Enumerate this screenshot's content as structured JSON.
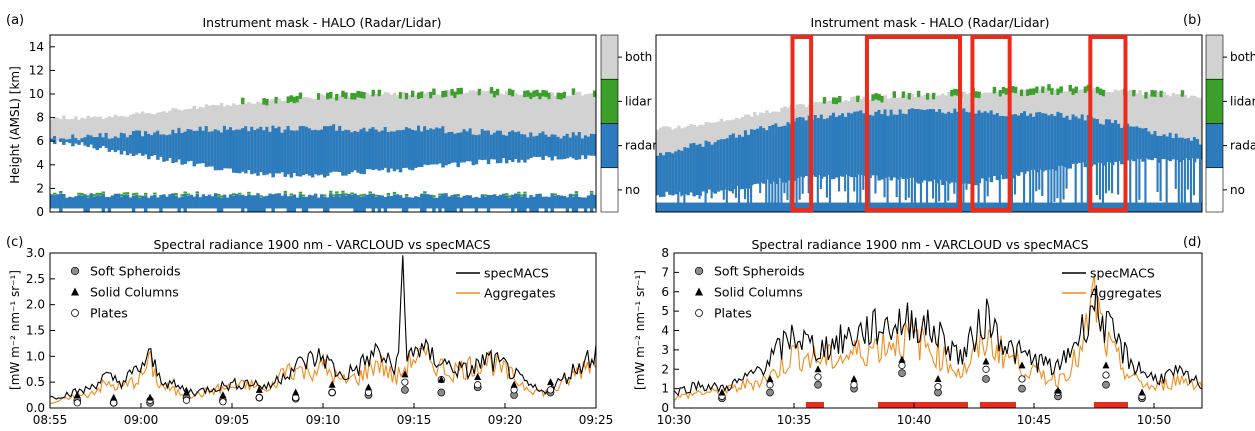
{
  "colors": {
    "no": "#ffffff",
    "radar": "#2b7bbd",
    "lidar": "#3aa02a",
    "both": "#d2d2d2",
    "specmacs": "#000000",
    "aggregates": "#f28c1d",
    "marker_gray": "#8c8c8c",
    "highlight": "#ee2a1b"
  },
  "chart_data": [
    {
      "type": "heatmap",
      "panel": "(a)",
      "title": "Instrument mask - HALO (Radar/Lidar)",
      "ylabel": "Height (AMSL) [km]",
      "ylim": [
        0,
        15
      ],
      "yticks": [
        0,
        2,
        4,
        6,
        8,
        10,
        12,
        14
      ],
      "xlim": [
        "08:55",
        "09:25"
      ],
      "colorbar_labels": [
        "both",
        "lidar",
        "radar",
        "no"
      ],
      "profile": {
        "radar_base_km": [
          6.0,
          5.6,
          5.0,
          4.4,
          3.9,
          3.4,
          3.1,
          3.1,
          3.4,
          3.6,
          3.9,
          4.2,
          4.4,
          4.6,
          4.7
        ],
        "cloud_top_km": [
          8.0,
          8.0,
          8.2,
          8.6,
          9.0,
          9.3,
          9.6,
          9.8,
          10.0,
          10.0,
          10.1,
          10.2,
          10.1,
          10.0,
          10.1
        ],
        "radar_top_km": [
          6.2,
          6.4,
          6.6,
          6.8,
          7.0,
          7.1,
          7.0,
          7.2,
          7.0,
          7.1,
          7.0,
          6.8,
          6.6,
          6.5,
          6.5
        ],
        "low_layer_top_km": 1.6
      }
    },
    {
      "type": "heatmap",
      "panel": "(b)",
      "title": "Instrument mask - HALO (Radar/Lidar)",
      "ylim": [
        0,
        15
      ],
      "xlim": [
        "10:30",
        "10:52"
      ],
      "colorbar_labels": [
        "both",
        "lidar",
        "radar",
        "no"
      ],
      "highlight_intervals": [
        [
          "10:35:30",
          "10:36:15"
        ],
        [
          "10:38:30",
          "10:42:15"
        ],
        [
          "10:42:45",
          "10:44:15"
        ],
        [
          "10:47:30",
          "10:48:55"
        ]
      ],
      "profile": {
        "radar_base_km": [
          1.5,
          1.5,
          2.0,
          2.6,
          3.0,
          3.0,
          2.8,
          2.6,
          2.4,
          3.0,
          3.6,
          4.0,
          4.2,
          4.4,
          4.4
        ],
        "cloud_top_km": [
          7.0,
          7.4,
          8.0,
          8.6,
          9.2,
          9.6,
          9.8,
          10.0,
          10.1,
          10.2,
          10.4,
          10.4,
          10.2,
          10.0,
          9.8
        ],
        "radar_top_km": [
          5.0,
          5.6,
          6.4,
          7.4,
          8.0,
          8.4,
          8.4,
          8.6,
          8.6,
          8.4,
          8.3,
          8.0,
          7.4,
          6.6,
          6.0
        ]
      }
    },
    {
      "type": "line",
      "panel": "(c)",
      "title": "Spectral radiance 1900 nm - VARCLOUD vs specMACS",
      "ylabel": "[mW m⁻² nm⁻¹ sr⁻¹]",
      "ylim": [
        0,
        3.0
      ],
      "yticks": [
        "0.0",
        "0.5",
        "1.0",
        "1.5",
        "2.0",
        "2.5",
        "3.0"
      ],
      "xlim": [
        "08:55",
        "09:25"
      ],
      "xticks": [
        "08:55",
        "09:00",
        "09:05",
        "09:10",
        "09:15",
        "09:20",
        "09:25"
      ],
      "legend_left": [
        "Soft Spheroids",
        "Solid Columns",
        "Plates"
      ],
      "legend_right": [
        "specMACS",
        "Aggregates"
      ],
      "series": [
        {
          "name": "specMACS",
          "minutes": [
            0,
            2,
            3,
            4,
            5,
            5.5,
            6,
            7,
            8,
            9,
            10,
            11,
            12,
            13,
            14,
            15,
            16,
            17,
            18,
            19,
            19.4,
            19.6,
            20,
            21,
            22,
            23,
            24,
            25,
            26,
            27,
            28,
            29,
            30
          ],
          "values": [
            0.2,
            0.35,
            0.6,
            0.5,
            0.8,
            1.0,
            0.6,
            0.4,
            0.3,
            0.4,
            0.45,
            0.5,
            0.4,
            0.7,
            0.9,
            1.0,
            0.6,
            0.8,
            1.1,
            0.7,
            2.55,
            0.9,
            1.2,
            1.0,
            0.8,
            0.7,
            0.95,
            0.8,
            0.5,
            0.3,
            0.5,
            0.8,
            1.1
          ]
        },
        {
          "name": "Aggregates",
          "minutes": [
            0,
            2,
            3,
            4,
            5,
            5.5,
            6,
            7,
            8,
            9,
            10,
            11,
            12,
            13,
            14,
            15,
            16,
            17,
            18,
            19,
            20,
            21,
            22,
            23,
            24,
            25,
            26,
            27,
            28,
            29,
            30
          ],
          "values": [
            0.1,
            0.25,
            0.45,
            0.4,
            0.6,
            0.9,
            0.45,
            0.3,
            0.25,
            0.35,
            0.4,
            0.45,
            0.3,
            0.8,
            0.7,
            0.8,
            0.5,
            0.6,
            0.9,
            0.55,
            1.0,
            0.9,
            0.7,
            0.8,
            0.95,
            0.7,
            0.45,
            0.3,
            0.4,
            0.7,
            1.0
          ]
        },
        {
          "name": "Soft Spheroids",
          "minutes": [
            1.5,
            3.5,
            5.5,
            7.5,
            9.5,
            11.5,
            13.5,
            15.5,
            17.5,
            19.5,
            21.5,
            23.5,
            25.5,
            27.5
          ],
          "values": [
            0.15,
            0.1,
            0.1,
            0.2,
            0.15,
            0.2,
            0.18,
            0.3,
            0.25,
            0.35,
            0.3,
            0.4,
            0.25,
            0.3
          ]
        },
        {
          "name": "Solid Columns",
          "minutes": [
            1.5,
            3.5,
            5.5,
            7.5,
            9.5,
            11.5,
            13.5,
            15.5,
            17.5,
            19.5,
            21.5,
            23.5,
            25.5,
            27.5
          ],
          "values": [
            0.25,
            0.2,
            0.2,
            0.3,
            0.25,
            0.35,
            0.3,
            0.45,
            0.4,
            0.65,
            0.55,
            0.6,
            0.45,
            0.5
          ]
        },
        {
          "name": "Plates",
          "minutes": [
            1.5,
            3.5,
            5.5,
            7.5,
            9.5,
            11.5,
            13.5,
            15.5,
            17.5,
            19.5,
            21.5,
            23.5,
            25.5,
            27.5
          ],
          "values": [
            0.1,
            0.1,
            0.15,
            0.15,
            0.12,
            0.2,
            0.2,
            0.3,
            0.3,
            0.5,
            0.55,
            0.45,
            0.35,
            0.35
          ]
        }
      ]
    },
    {
      "type": "line",
      "panel": "(d)",
      "title": "Spectral radiance 1900 nm - VARCLOUD vs specMACS",
      "ylabel": "[mW m⁻² nm⁻¹ sr⁻¹]",
      "ylim": [
        0,
        8
      ],
      "yticks": [
        "0",
        "1",
        "2",
        "3",
        "4",
        "5",
        "6",
        "7",
        "8"
      ],
      "xlim": [
        "10:30",
        "10:52"
      ],
      "xticks": [
        "10:30",
        "10:35",
        "10:40",
        "10:45",
        "10:50"
      ],
      "legend_left": [
        "Soft Spheroids",
        "Solid Columns",
        "Plates"
      ],
      "legend_right": [
        "specMACS",
        "Aggregates"
      ],
      "highlight_intervals": [
        [
          "10:35:30",
          "10:36:15"
        ],
        [
          "10:38:30",
          "10:42:15"
        ],
        [
          "10:42:45",
          "10:44:15"
        ],
        [
          "10:47:30",
          "10:48:55"
        ]
      ],
      "series": [
        {
          "name": "specMACS",
          "minutes": [
            0,
            1,
            2,
            3,
            4,
            5,
            6,
            7,
            8,
            9,
            10,
            11,
            12,
            13,
            14,
            15,
            16,
            17,
            17.5,
            18,
            19,
            20,
            21,
            22
          ],
          "values": [
            0.8,
            1.2,
            1.0,
            1.5,
            2.5,
            3.8,
            3.0,
            3.5,
            4.0,
            4.3,
            4.5,
            3.8,
            2.6,
            4.8,
            3.0,
            2.5,
            2.0,
            4.0,
            5.5,
            4.2,
            2.4,
            1.5,
            1.8,
            1.2
          ]
        },
        {
          "name": "Aggregates",
          "minutes": [
            0,
            1,
            2,
            3,
            4,
            5,
            6,
            7,
            8,
            9,
            10,
            11,
            12,
            13,
            14,
            15,
            16,
            17,
            17.5,
            18,
            19,
            20,
            21,
            22
          ],
          "values": [
            0.5,
            0.8,
            0.8,
            1.2,
            1.6,
            2.8,
            2.5,
            2.6,
            3.0,
            3.4,
            3.6,
            2.8,
            1.8,
            3.5,
            2.6,
            1.8,
            1.5,
            2.8,
            5.8,
            3.3,
            1.6,
            1.0,
            1.5,
            1.2
          ]
        },
        {
          "name": "Soft Spheroids",
          "minutes": [
            2,
            4,
            6,
            7.5,
            9.5,
            11,
            13,
            14.5,
            16,
            18,
            19.5
          ],
          "values": [
            0.5,
            0.8,
            1.2,
            1.0,
            1.8,
            0.8,
            1.5,
            1.0,
            0.6,
            1.2,
            0.5
          ]
        },
        {
          "name": "Solid Columns",
          "minutes": [
            2,
            4,
            6,
            7.5,
            9.5,
            11,
            13,
            14.5,
            16,
            18,
            19.5
          ],
          "values": [
            0.8,
            1.5,
            2.0,
            1.5,
            2.5,
            1.5,
            2.4,
            2.2,
            0.9,
            2.2,
            0.8
          ]
        },
        {
          "name": "Plates",
          "minutes": [
            2,
            4,
            6,
            7.5,
            9.5,
            11,
            13,
            14.5,
            16,
            18,
            19.5
          ],
          "values": [
            0.6,
            1.2,
            1.6,
            1.2,
            2.2,
            1.1,
            2.0,
            1.5,
            0.8,
            1.7,
            0.6
          ]
        }
      ]
    }
  ]
}
